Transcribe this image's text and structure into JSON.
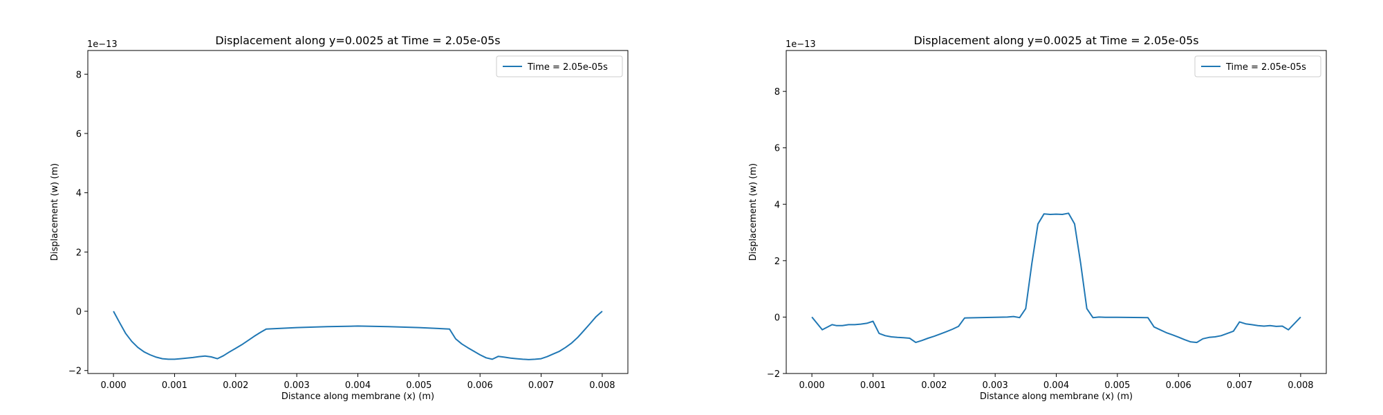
{
  "figure": {
    "background": "#ffffff",
    "line_color": "#1f77b4"
  },
  "chart_data": [
    {
      "type": "line",
      "title": "Displacement along y=0.0025 at Time = 2.05e-05s",
      "xlabel": "Distance along membrane (x) (m)",
      "ylabel": "Displacement (w) (m)",
      "y_offset_label": "1e−13",
      "xlim": [
        -0.00042,
        0.00842
      ],
      "ylim": [
        -2.1,
        8.8
      ],
      "xticks": [
        0.0,
        0.001,
        0.002,
        0.003,
        0.004,
        0.005,
        0.006,
        0.007,
        0.008
      ],
      "xtick_labels": [
        "0.000",
        "0.001",
        "0.002",
        "0.003",
        "0.004",
        "0.005",
        "0.006",
        "0.007",
        "0.008"
      ],
      "yticks": [
        -2,
        0,
        2,
        4,
        6,
        8
      ],
      "ytick_labels": [
        "−2",
        "0",
        "2",
        "4",
        "6",
        "8"
      ],
      "grid": false,
      "legend_position": "upper right",
      "series": [
        {
          "name": "Time = 2.05e-05s",
          "x": [
            0.0,
            0.0001,
            0.0002,
            0.0003,
            0.0004,
            0.0005,
            0.0006,
            0.0007,
            0.0008,
            0.0009,
            0.001,
            0.0011,
            0.0012,
            0.0013,
            0.0014,
            0.0015,
            0.0016,
            0.0017,
            0.0018,
            0.0019,
            0.002,
            0.0021,
            0.0022,
            0.0023,
            0.0024,
            0.0025,
            0.003,
            0.0035,
            0.004,
            0.0045,
            0.005,
            0.0055,
            0.0056,
            0.0057,
            0.0058,
            0.0059,
            0.006,
            0.0061,
            0.0062,
            0.0063,
            0.0064,
            0.0065,
            0.0066,
            0.0067,
            0.0068,
            0.0069,
            0.007,
            0.0071,
            0.0072,
            0.0073,
            0.0074,
            0.0075,
            0.0076,
            0.0077,
            0.0078,
            0.0079,
            0.008
          ],
          "y": [
            0.0,
            -0.38,
            -0.75,
            -1.02,
            -1.22,
            -1.37,
            -1.47,
            -1.55,
            -1.6,
            -1.62,
            -1.62,
            -1.6,
            -1.58,
            -1.56,
            -1.53,
            -1.51,
            -1.54,
            -1.6,
            -1.5,
            -1.37,
            -1.25,
            -1.13,
            -0.99,
            -0.85,
            -0.72,
            -0.6,
            -0.55,
            -0.52,
            -0.5,
            -0.52,
            -0.55,
            -0.6,
            -0.93,
            -1.1,
            -1.23,
            -1.35,
            -1.47,
            -1.57,
            -1.62,
            -1.52,
            -1.55,
            -1.58,
            -1.6,
            -1.62,
            -1.63,
            -1.62,
            -1.6,
            -1.53,
            -1.44,
            -1.35,
            -1.22,
            -1.07,
            -0.88,
            -0.65,
            -0.42,
            -0.18,
            0.0
          ]
        }
      ]
    },
    {
      "type": "line",
      "title": "Displacement along y=0.0025 at Time = 2.05e-05s",
      "xlabel": "Distance along membrane (x) (m)",
      "ylabel": "Displacement (w) (m)",
      "y_offset_label": "1e−13",
      "xlim": [
        -0.00042,
        0.00842
      ],
      "ylim": [
        -2.0,
        9.45
      ],
      "xticks": [
        0.0,
        0.001,
        0.002,
        0.003,
        0.004,
        0.005,
        0.006,
        0.007,
        0.008
      ],
      "xtick_labels": [
        "0.000",
        "0.001",
        "0.002",
        "0.003",
        "0.004",
        "0.005",
        "0.006",
        "0.007",
        "0.008"
      ],
      "yticks": [
        -2,
        0,
        2,
        4,
        6,
        8
      ],
      "ytick_labels": [
        "−2",
        "0",
        "2",
        "4",
        "6",
        "8"
      ],
      "grid": false,
      "legend_position": "upper right",
      "series": [
        {
          "name": "Time = 2.05e-05s",
          "x": [
            0.0,
            0.00017,
            0.00033,
            0.0004,
            0.0005,
            0.0006,
            0.0007,
            0.0008,
            0.0009,
            0.001,
            0.0011,
            0.0012,
            0.0013,
            0.0014,
            0.0015,
            0.0016,
            0.0017,
            0.0018,
            0.0019,
            0.002,
            0.0021,
            0.0022,
            0.0023,
            0.0024,
            0.0025,
            0.003,
            0.0032,
            0.0033,
            0.0034,
            0.0035,
            0.0036,
            0.0037,
            0.0038,
            0.0039,
            0.004,
            0.0041,
            0.0042,
            0.0043,
            0.0044,
            0.0045,
            0.0046,
            0.0047,
            0.0048,
            0.0049,
            0.005,
            0.0055,
            0.0056,
            0.0057,
            0.0058,
            0.0059,
            0.006,
            0.0061,
            0.0062,
            0.0063,
            0.0064,
            0.0065,
            0.0066,
            0.0067,
            0.0068,
            0.0069,
            0.007,
            0.0071,
            0.0072,
            0.0073,
            0.0074,
            0.0075,
            0.0076,
            0.0077,
            0.0078,
            0.008
          ],
          "y": [
            0.0,
            -0.45,
            -0.27,
            -0.3,
            -0.3,
            -0.27,
            -0.27,
            -0.25,
            -0.22,
            -0.15,
            -0.58,
            -0.66,
            -0.7,
            -0.72,
            -0.73,
            -0.75,
            -0.9,
            -0.83,
            -0.75,
            -0.68,
            -0.6,
            -0.52,
            -0.43,
            -0.33,
            -0.03,
            -0.01,
            0.0,
            0.02,
            -0.02,
            0.3,
            1.9,
            3.3,
            3.66,
            3.64,
            3.65,
            3.64,
            3.68,
            3.3,
            1.9,
            0.3,
            -0.02,
            0.0,
            -0.01,
            -0.01,
            -0.01,
            -0.02,
            -0.35,
            -0.45,
            -0.55,
            -0.63,
            -0.71,
            -0.8,
            -0.88,
            -0.9,
            -0.77,
            -0.72,
            -0.7,
            -0.66,
            -0.58,
            -0.5,
            -0.17,
            -0.24,
            -0.27,
            -0.3,
            -0.32,
            -0.3,
            -0.33,
            -0.32,
            -0.45,
            0.0
          ]
        }
      ]
    }
  ]
}
